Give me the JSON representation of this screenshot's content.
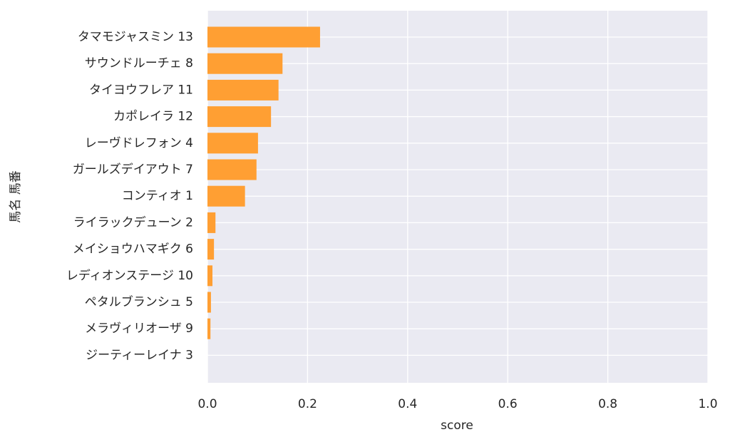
{
  "chart_data": {
    "type": "barh",
    "xlabel": "score",
    "ylabel": "馬名 馬番",
    "categories": [
      "タマモジャスミン 13",
      "サウンドルーチェ 8",
      "タイヨウフレア 11",
      "カポレイラ 12",
      "レーヴドレフォン 4",
      "ガールズデイアウト 7",
      "コンティオ 1",
      "ライラックデューン 2",
      "メイショウハマギク 6",
      "レディオンステージ 10",
      "ペタルブランシュ 5",
      "メラヴィリオーザ 9",
      "ジーティーレイナ 3"
    ],
    "values": [
      0.225,
      0.15,
      0.142,
      0.127,
      0.101,
      0.098,
      0.075,
      0.016,
      0.013,
      0.01,
      0.007,
      0.006,
      0.0
    ],
    "color": "#ff9f33",
    "xlim": [
      0,
      1
    ],
    "xticks": [
      {
        "value": 0,
        "label": "0.0"
      },
      0.2,
      0.4,
      0.6,
      0.8,
      {
        "value": 1,
        "label": "1.0"
      }
    ],
    "grid": true
  }
}
